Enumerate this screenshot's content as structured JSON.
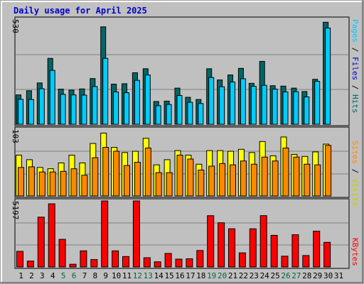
{
  "title": "Daily usage for April 2025",
  "colors": {
    "hits": "#006666",
    "files": "#00ccff",
    "pages": "#00ccff",
    "visits": "#ffff00",
    "sites": "#ff8800",
    "kbytes": "#ff0000",
    "weekday_label": "#000000",
    "weekend_label": "#006644"
  },
  "chart_data": [
    {
      "type": "bar",
      "panel": "hits-files-pages",
      "y_max_label": "530",
      "ylim": [
        0,
        530
      ],
      "legend": [
        "Pages",
        "Files",
        "Hits"
      ],
      "categories": [
        "1",
        "2",
        "3",
        "4",
        "5",
        "6",
        "7",
        "8",
        "9",
        "10",
        "11",
        "12",
        "13",
        "14",
        "15",
        "16",
        "17",
        "18",
        "19",
        "20",
        "21",
        "22",
        "23",
        "24",
        "25",
        "26",
        "27",
        "28",
        "29",
        "30",
        "31"
      ],
      "weekend_days": [
        "5",
        "6",
        "12",
        "13",
        "19",
        "20",
        "26",
        "27"
      ],
      "series": [
        {
          "name": "Hits",
          "values": [
            147,
            168,
            207,
            330,
            176,
            171,
            177,
            229,
            488,
            201,
            203,
            258,
            278,
            114,
            116,
            181,
            135,
            124,
            278,
            222,
            247,
            280,
            205,
            315,
            193,
            191,
            181,
            164,
            225,
            511,
            0
          ]
        },
        {
          "name": "Files",
          "values": [
            125,
            124,
            178,
            270,
            150,
            147,
            146,
            189,
            330,
            162,
            158,
            220,
            247,
            93,
            99,
            144,
            110,
            104,
            234,
            188,
            212,
            228,
            190,
            195,
            176,
            162,
            163,
            137,
            215,
            482,
            0
          ]
        }
      ]
    },
    {
      "type": "bar",
      "panel": "visits-sites",
      "y_max_label": "103",
      "ylim": [
        0,
        103
      ],
      "legend": [
        "Sites",
        "Visits"
      ],
      "categories": [
        "1",
        "2",
        "3",
        "4",
        "5",
        "6",
        "7",
        "8",
        "9",
        "10",
        "11",
        "12",
        "13",
        "14",
        "15",
        "16",
        "17",
        "18",
        "19",
        "20",
        "21",
        "22",
        "23",
        "24",
        "25",
        "26",
        "27",
        "28",
        "29",
        "30",
        "31"
      ],
      "series": [
        {
          "name": "Visits",
          "values": [
            63,
            56,
            44,
            42,
            51,
            63,
            51,
            81,
            97,
            75,
            67,
            69,
            89,
            48,
            56,
            70,
            63,
            49,
            70,
            70,
            69,
            72,
            67,
            84,
            62,
            91,
            64,
            61,
            68,
            80,
            0
          ]
        },
        {
          "name": "Sites",
          "values": [
            44,
            45,
            37,
            37,
            38,
            42,
            32,
            59,
            75,
            69,
            47,
            52,
            74,
            36,
            36,
            63,
            57,
            40,
            46,
            50,
            48,
            54,
            49,
            60,
            54,
            74,
            60,
            49,
            48,
            78,
            0
          ]
        }
      ]
    },
    {
      "type": "bar",
      "panel": "kbytes",
      "y_max_label": "5197",
      "ylim": [
        0,
        5197
      ],
      "legend": [
        "KBytes"
      ],
      "categories": [
        "1",
        "2",
        "3",
        "4",
        "5",
        "6",
        "7",
        "8",
        "9",
        "10",
        "11",
        "12",
        "13",
        "14",
        "15",
        "16",
        "17",
        "18",
        "19",
        "20",
        "21",
        "22",
        "23",
        "24",
        "25",
        "26",
        "27",
        "28",
        "29",
        "30",
        "31"
      ],
      "series": [
        {
          "name": "KBytes",
          "values": [
            1230,
            463,
            3922,
            4970,
            2175,
            215,
            1270,
            583,
            5197,
            1270,
            822,
            5197,
            728,
            407,
            1065,
            615,
            646,
            1296,
            4038,
            3481,
            3008,
            1110,
            3004,
            4042,
            2490,
            850,
            2538,
            900,
            2818,
            1938,
            0
          ]
        }
      ]
    }
  ]
}
